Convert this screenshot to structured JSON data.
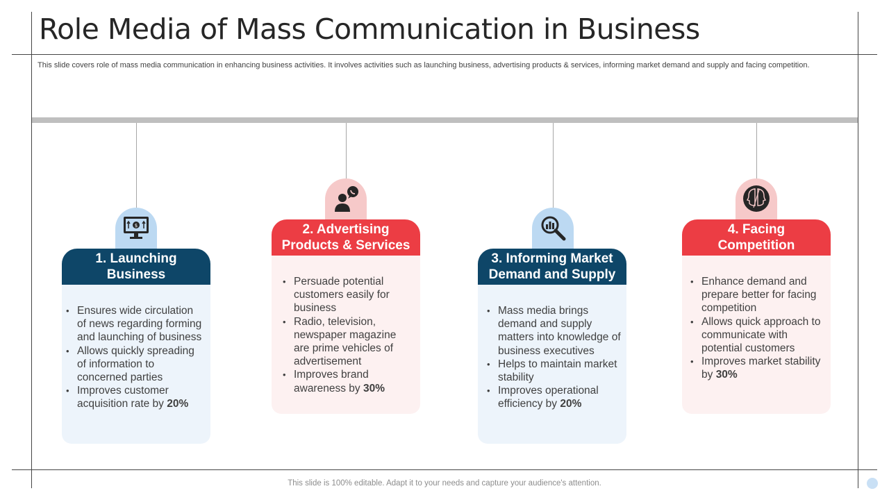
{
  "title": "Role Media of Mass Communication in Business",
  "subtitle": "This slide covers role of mass media communication in enhancing business activities. It involves activities such as launching business, advertising products & services, informing market demand and supply and facing competition.",
  "footer": "This slide is 100% editable. Adapt it to your needs and capture your audience's attention.",
  "colors": {
    "navy": "#0e4668",
    "red": "#ec3d44",
    "light_blue": "#bcd9f2",
    "light_pink": "#f6c9c9"
  },
  "cards": [
    {
      "icon": "monitor-dollar-icon",
      "title_line1": "1. Launching",
      "title_line2": "Business",
      "bullets": [
        "Ensures wide circulation of news regarding forming and launching of business",
        "Allows quickly spreading of information to concerned parties",
        "Improves customer acquisition rate by"
      ],
      "highlight": "20%"
    },
    {
      "icon": "person-chat-icon",
      "title_line1": "2. Advertising",
      "title_line2": "Products & Services",
      "bullets": [
        "Persuade potential customers easily for business",
        "Radio, television, newspaper magazine are prime vehicles of advertisement",
        "Improves brand awareness by"
      ],
      "highlight": "30%"
    },
    {
      "icon": "magnify-chart-icon",
      "title_line1": "3. Informing Market",
      "title_line2": "Demand and Supply",
      "bullets": [
        "Mass media brings demand and supply matters into knowledge of business executives",
        "Helps to maintain market stability",
        "Improves operational efficiency by"
      ],
      "highlight": "20%"
    },
    {
      "icon": "competing-heads-icon",
      "title_line1": "4. Facing",
      "title_line2": "Competition",
      "bullets": [
        "Enhance demand and prepare better for facing competition",
        "Allows quick approach to communicate with potential customers",
        "Improves market stability by"
      ],
      "highlight": "30%"
    }
  ]
}
